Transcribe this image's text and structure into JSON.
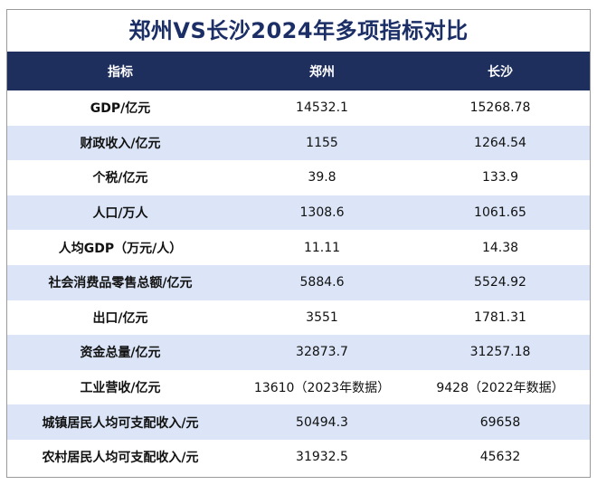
{
  "title": "郑州VS长沙2024年多项指标对比",
  "header": {
    "col1": "指标",
    "col2": "郑州",
    "col3": "长沙"
  },
  "rows": [
    {
      "label": "GDP/亿元",
      "zhengzhou": "14532.1",
      "changsha": "15268.78"
    },
    {
      "label": "财政收入/亿元",
      "zhengzhou": "1155",
      "changsha": "1264.54"
    },
    {
      "label": "个税/亿元",
      "zhengzhou": "39.8",
      "changsha": "133.9"
    },
    {
      "label": "人口/万人",
      "zhengzhou": "1308.6",
      "changsha": "1061.65"
    },
    {
      "label": "人均GDP（万元/人）",
      "zhengzhou": "11.11",
      "changsha": "14.38"
    },
    {
      "label": "社会消费品零售总额/亿元",
      "zhengzhou": "5884.6",
      "changsha": "5524.92"
    },
    {
      "label": "出口/亿元",
      "zhengzhou": "3551",
      "changsha": "1781.31"
    },
    {
      "label": "资金总量/亿元",
      "zhengzhou": "32873.7",
      "changsha": "31257.18"
    },
    {
      "label": "工业营收/亿元",
      "zhengzhou": "13610（2023年数据）",
      "changsha": "9428（2022年数据）"
    },
    {
      "label": "城镇居民人均可支配收入/元",
      "zhengzhou": "50494.3",
      "changsha": "69658"
    },
    {
      "label": "农村居民人均可支配收入/元",
      "zhengzhou": "31932.5",
      "changsha": "45632"
    }
  ]
}
